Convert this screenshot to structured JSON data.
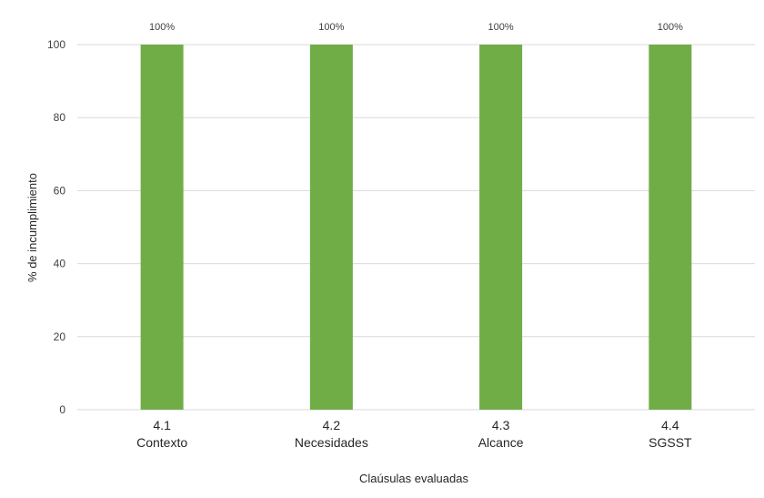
{
  "chart_data": {
    "type": "bar",
    "categories": [
      [
        "4.1",
        "Contexto"
      ],
      [
        "4.2",
        "Necesidades"
      ],
      [
        "4.3",
        "Alcance"
      ],
      [
        "4.4",
        "SGSST"
      ]
    ],
    "values": [
      100,
      100,
      100,
      100
    ],
    "data_labels": [
      "100%",
      "100%",
      "100%",
      "100%"
    ],
    "xlabel": "Claúsulas evaluadas",
    "ylabel": "% de incumplimiento",
    "ylim": [
      0,
      100
    ],
    "yticks": [
      0,
      20,
      40,
      60,
      80,
      100
    ],
    "grid": true,
    "legend": "none",
    "colors": {
      "bar": "#70ad47",
      "grid": "#d9d9d9"
    }
  }
}
